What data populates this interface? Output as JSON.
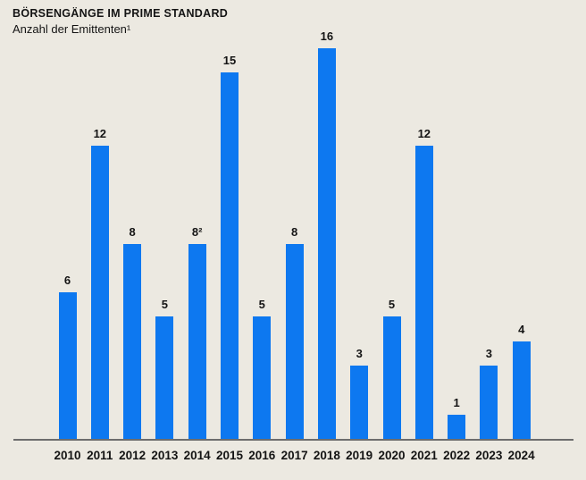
{
  "chart_data": {
    "type": "bar",
    "title": "BÖRSENGÄNGE IM PRIME STANDARD",
    "subtitle": "Anzahl der Emittenten¹",
    "categories": [
      "2010",
      "2011",
      "2012",
      "2013",
      "2014",
      "2015",
      "2016",
      "2017",
      "2018",
      "2019",
      "2020",
      "2021",
      "2022",
      "2023",
      "2024"
    ],
    "values": [
      6,
      12,
      8,
      5,
      8,
      15,
      5,
      8,
      16,
      3,
      5,
      12,
      1,
      3,
      4
    ],
    "value_labels": [
      "6",
      "12",
      "8",
      "5",
      "8²",
      "15",
      "5",
      "8",
      "16",
      "3",
      "5",
      "12",
      "1",
      "3",
      "4"
    ],
    "xlabel": "",
    "ylabel": "",
    "ylim": [
      0,
      16
    ],
    "grid": false,
    "legend": "none",
    "bar_color": "#0d78f0",
    "background_color": "#ece9e1",
    "text_color": "#141414",
    "axis_line_color": "#6d6d6d"
  }
}
